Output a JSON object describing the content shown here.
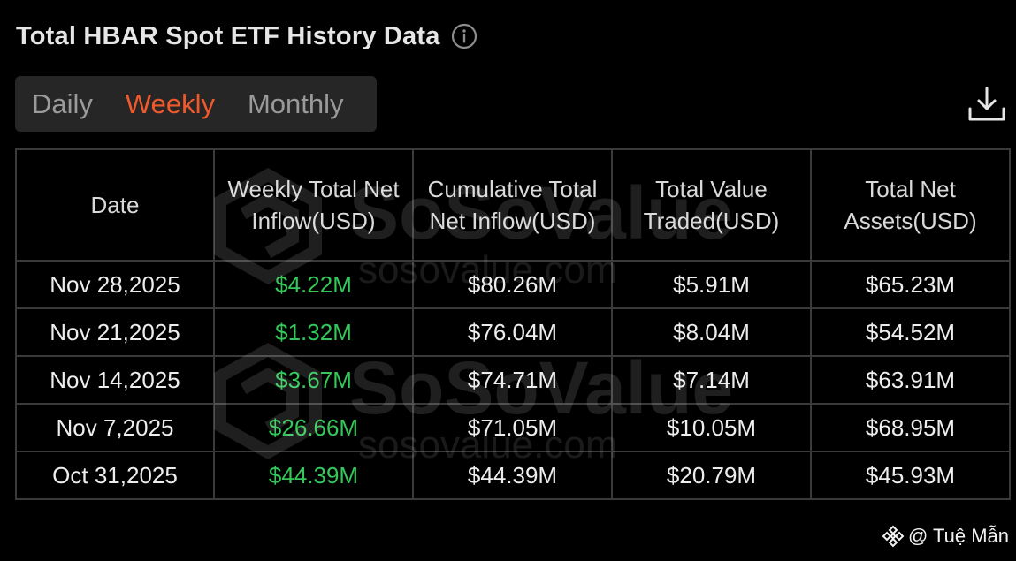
{
  "header": {
    "title": "Total HBAR Spot ETF History Data"
  },
  "tabs": [
    {
      "label": "Daily",
      "active": false
    },
    {
      "label": "Weekly",
      "active": true
    },
    {
      "label": "Monthly",
      "active": false
    }
  ],
  "table": {
    "columns": [
      "Date",
      "Weekly Total Net Inflow(USD)",
      "Cumulative Total Net Inflow(USD)",
      "Total Value Traded(USD)",
      "Total Net Assets(USD)"
    ],
    "rows": [
      {
        "date": "Nov 28,2025",
        "weekly_inflow": "$4.22M",
        "cumulative_inflow": "$80.26M",
        "value_traded": "$5.91M",
        "net_assets": "$65.23M"
      },
      {
        "date": "Nov 21,2025",
        "weekly_inflow": "$1.32M",
        "cumulative_inflow": "$76.04M",
        "value_traded": "$8.04M",
        "net_assets": "$54.52M"
      },
      {
        "date": "Nov 14,2025",
        "weekly_inflow": "$3.67M",
        "cumulative_inflow": "$74.71M",
        "value_traded": "$7.14M",
        "net_assets": "$63.91M"
      },
      {
        "date": "Nov 7,2025",
        "weekly_inflow": "$26.66M",
        "cumulative_inflow": "$71.05M",
        "value_traded": "$10.05M",
        "net_assets": "$68.95M"
      },
      {
        "date": "Oct 31,2025",
        "weekly_inflow": "$44.39M",
        "cumulative_inflow": "$44.39M",
        "value_traded": "$20.79M",
        "net_assets": "$45.93M"
      }
    ]
  },
  "watermark": {
    "brand": "SoSoValue",
    "domain": "sosovalue.com"
  },
  "credit": {
    "text": "@ Tuệ Mẫn"
  },
  "icons": {
    "info": "info-icon",
    "download": "download-icon",
    "credit_logo": "binance-logo-icon"
  },
  "colors": {
    "accent": "#ef5a2c",
    "positive": "#34c759",
    "background": "#000000",
    "tab_background": "#262626",
    "border": "#3a3a3a"
  }
}
